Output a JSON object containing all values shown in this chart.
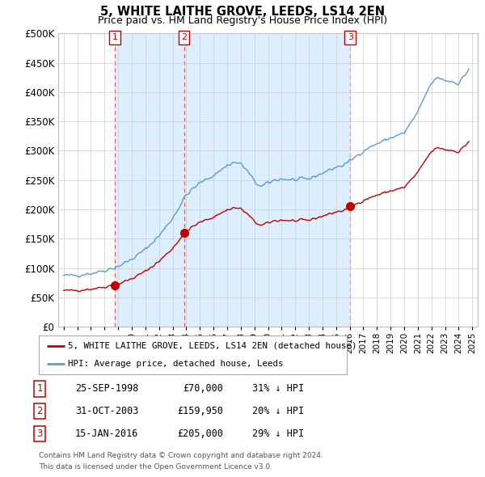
{
  "title": "5, WHITE LAITHE GROVE, LEEDS, LS14 2EN",
  "subtitle": "Price paid vs. HM Land Registry's House Price Index (HPI)",
  "legend_line1": "5, WHITE LAITHE GROVE, LEEDS, LS14 2EN (detached house)",
  "legend_line2": "HPI: Average price, detached house, Leeds",
  "transactions": [
    {
      "num": 1,
      "date": "25-SEP-1998",
      "price": 70000,
      "year": 1998.75,
      "hpi_diff": "31% ↓ HPI"
    },
    {
      "num": 2,
      "date": "31-OCT-2003",
      "price": 159950,
      "year": 2003.83,
      "hpi_diff": "20% ↓ HPI"
    },
    {
      "num": 3,
      "date": "15-JAN-2016",
      "price": 205000,
      "year": 2016.04,
      "hpi_diff": "29% ↓ HPI"
    }
  ],
  "footer_line1": "Contains HM Land Registry data © Crown copyright and database right 2024.",
  "footer_line2": "This data is licensed under the Open Government Licence v3.0.",
  "hpi_color": "#5b9bd5",
  "price_color": "#c00000",
  "shade_color": "#ddeeff",
  "vline_color": "#e06060",
  "background_color": "#ffffff",
  "grid_color": "#cccccc",
  "ylim": [
    0,
    500000
  ],
  "yticks": [
    0,
    50000,
    100000,
    150000,
    200000,
    250000,
    300000,
    350000,
    400000,
    450000,
    500000
  ],
  "xlim_start": 1994.6,
  "xlim_end": 2025.4
}
